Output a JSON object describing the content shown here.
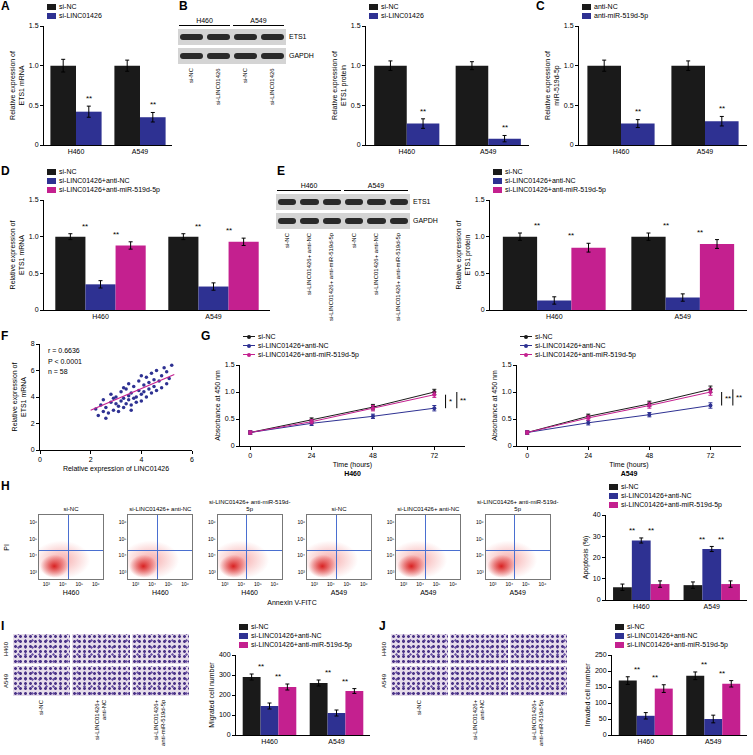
{
  "chart_data": [
    {
      "panel": "A",
      "type": "bar",
      "categories": [
        "H460",
        "A549"
      ],
      "y_label": "Relative expression of ETS1 mRNA",
      "ylim": [
        0,
        1.5
      ],
      "yticks": [
        0,
        0.5,
        {
          "value": 1,
          "label": "1.0"
        },
        1.5
      ],
      "legend": "top-left",
      "series": [
        {
          "name": "si-NC",
          "color": "#1a1a1a",
          "values": [
            1.0,
            1.0
          ],
          "errors": [
            0.08,
            0.07
          ]
        },
        {
          "name": "si-LINC01426",
          "color": "#2e3192",
          "values": [
            0.42,
            0.35
          ],
          "errors": [
            0.07,
            0.06
          ]
        }
      ],
      "significance": [
        {
          "category": "H460",
          "series": [
            1
          ],
          "label": "**"
        },
        {
          "category": "A549",
          "series": [
            1
          ],
          "label": "**"
        }
      ]
    },
    {
      "type": "bar",
      "categories": [
        "H460",
        "A549"
      ],
      "y_label": "Relative expression of ETS1 protein",
      "ylim": [
        0,
        1.5
      ],
      "yticks": [
        0,
        0.5,
        {
          "value": 1,
          "label": "1.0"
        },
        1.5
      ],
      "legend": "top-left",
      "series": [
        {
          "name": "si-NC",
          "color": "#1a1a1a",
          "values": [
            1.0,
            1.0
          ],
          "errors": [
            0.06,
            0.05
          ]
        },
        {
          "name": "si-LINC01426",
          "color": "#2e3192",
          "values": [
            0.27,
            0.08
          ],
          "errors": [
            0.06,
            0.04
          ]
        }
      ],
      "significance": [
        {
          "category": "H460",
          "series": [
            1
          ],
          "label": "**"
        },
        {
          "category": "A549",
          "series": [
            1
          ],
          "label": "**"
        }
      ]
    },
    {
      "panel": "C",
      "type": "bar",
      "categories": [
        "H460",
        "A549"
      ],
      "y_label": "Relative expression of miR-519d-5p",
      "ylim": [
        0,
        1.5
      ],
      "yticks": [
        0,
        0.5,
        {
          "value": 1,
          "label": "1.0"
        },
        1.5
      ],
      "legend": "top-left",
      "series": [
        {
          "name": "anti-NC",
          "color": "#1a1a1a",
          "values": [
            1.0,
            1.0
          ],
          "errors": [
            0.07,
            0.06
          ]
        },
        {
          "name": "anti-miR-519d-5p",
          "color": "#2e3192",
          "values": [
            0.27,
            0.3
          ],
          "errors": [
            0.05,
            0.06
          ]
        }
      ],
      "significance": [
        {
          "category": "H460",
          "series": [
            1
          ],
          "label": "**"
        },
        {
          "category": "A549",
          "series": [
            1
          ],
          "label": "**"
        }
      ]
    },
    {
      "panel": "D",
      "type": "bar",
      "categories": [
        "H460",
        "A549"
      ],
      "y_label": "Relative expression of ETS1 mRNA",
      "ylim": [
        0,
        1.5
      ],
      "yticks": [
        0,
        0.5,
        {
          "value": 1,
          "label": "1.0"
        },
        1.5
      ],
      "legend": "top-left",
      "series": [
        {
          "name": "si-NC",
          "color": "#1a1a1a",
          "values": [
            1.0,
            1.0
          ],
          "errors": [
            0.04,
            0.04
          ]
        },
        {
          "name": "si-LINC01426+anti-NC",
          "color": "#2e3192",
          "values": [
            0.35,
            0.32
          ],
          "errors": [
            0.05,
            0.05
          ]
        },
        {
          "name": "si-LINC01426+anti-miR-519d-5p",
          "color": "#c4208f",
          "values": [
            0.88,
            0.93
          ],
          "errors": [
            0.05,
            0.05
          ]
        }
      ],
      "significance": [
        {
          "category": "H460",
          "series": [
            0,
            1
          ],
          "label": "**"
        },
        {
          "category": "H460",
          "series": [
            1,
            2
          ],
          "label": "**"
        },
        {
          "category": "A549",
          "series": [
            0,
            1
          ],
          "label": "**"
        },
        {
          "category": "A549",
          "series": [
            1,
            2
          ],
          "label": "**"
        }
      ]
    },
    {
      "type": "bar",
      "categories": [
        "H460",
        "A549"
      ],
      "y_label": "Relative expression of ETS1 protein",
      "ylim": [
        0,
        1.5
      ],
      "yticks": [
        0,
        0.5,
        {
          "value": 1,
          "label": "1.0"
        },
        1.5
      ],
      "legend": "top-left",
      "series": [
        {
          "name": "si-NC",
          "color": "#1a1a1a",
          "values": [
            1.0,
            1.0
          ],
          "errors": [
            0.05,
            0.05
          ]
        },
        {
          "name": "si-LINC01426+anti-NC",
          "color": "#2e3192",
          "values": [
            0.13,
            0.17
          ],
          "errors": [
            0.05,
            0.05
          ]
        },
        {
          "name": "si-LINC01426+anti-miR-519d-5p",
          "color": "#c4208f",
          "values": [
            0.85,
            0.9
          ],
          "errors": [
            0.06,
            0.06
          ]
        }
      ],
      "significance": [
        {
          "category": "H460",
          "series": [
            0,
            1
          ],
          "label": "**"
        },
        {
          "category": "H460",
          "series": [
            1,
            2
          ],
          "label": "**"
        },
        {
          "category": "A549",
          "series": [
            0,
            1
          ],
          "label": "**"
        },
        {
          "category": "A549",
          "series": [
            1,
            2
          ],
          "label": "**"
        }
      ]
    },
    {
      "panel": "F",
      "type": "scatter",
      "x_label": "Relative expression of LINC01426",
      "y_label": "Relative expression of ETS1 mRNA",
      "xlim": [
        0,
        6
      ],
      "xticks": [
        0,
        2,
        4,
        6
      ],
      "ylim": [
        0,
        8
      ],
      "yticks": [
        0,
        2,
        4,
        6,
        8
      ],
      "annotations": [
        "r = 0.6636",
        "P < 0.0001",
        "n = 58"
      ],
      "color": "#2e3192",
      "x": [
        2.2,
        2.3,
        2.4,
        2.5,
        2.5,
        2.6,
        2.7,
        2.8,
        2.8,
        2.9,
        3.0,
        3.0,
        3.1,
        3.1,
        3.2,
        3.2,
        3.3,
        3.3,
        3.4,
        3.4,
        3.5,
        3.5,
        3.5,
        3.6,
        3.6,
        3.7,
        3.7,
        3.8,
        3.8,
        3.9,
        3.9,
        4.0,
        4.0,
        4.1,
        4.1,
        4.2,
        4.2,
        4.3,
        4.3,
        4.4,
        4.4,
        4.5,
        4.5,
        4.6,
        4.6,
        4.7,
        4.8,
        4.8,
        4.9,
        5.0,
        5.0,
        5.1,
        5.2,
        3.3,
        2.9,
        4.0,
        3.6,
        2.6
      ],
      "y": [
        3.1,
        2.6,
        3.4,
        2.9,
        3.8,
        3.2,
        2.8,
        3.6,
        4.2,
        3.0,
        3.5,
        4.0,
        3.3,
        2.9,
        4.4,
        3.7,
        3.9,
        3.2,
        4.6,
        3.5,
        4.1,
        3.8,
        5.0,
        3.4,
        4.3,
        3.9,
        4.8,
        4.0,
        3.6,
        4.5,
        5.2,
        4.2,
        3.7,
        4.9,
        4.4,
        5.5,
        4.0,
        4.6,
        5.1,
        4.3,
        5.8,
        4.8,
        5.3,
        4.5,
        6.0,
        5.2,
        4.7,
        5.6,
        6.2,
        5.0,
        5.9,
        5.4,
        6.4,
        4.7,
        3.9,
        5.6,
        3.0,
        2.4
      ],
      "fit": {
        "x": [
          2.0,
          5.3
        ],
        "y": [
          3.0,
          5.7
        ],
        "color": "#c4208f"
      }
    },
    {
      "panel": "G",
      "type": "line",
      "subtitle": "H460",
      "x_label": "Time (hours)",
      "y_label": "Absorbance at 450 nm",
      "x": [
        0,
        24,
        48,
        72
      ],
      "xlim": [
        -4,
        84
      ],
      "xticks": [
        0,
        24,
        48,
        72
      ],
      "ylim": [
        0,
        1.5
      ],
      "yticks": [
        0,
        0.5,
        {
          "value": 1,
          "label": "1.0"
        },
        1.5
      ],
      "legend": "top-left",
      "series": [
        {
          "name": "si-NC",
          "color": "#1a1a1a",
          "values": [
            0.25,
            0.48,
            0.72,
            1.0
          ],
          "errors": [
            0.03,
            0.04,
            0.05,
            0.05
          ]
        },
        {
          "name": "si-LINC01426+anti-NC",
          "color": "#2e3192",
          "values": [
            0.25,
            0.42,
            0.55,
            0.7
          ],
          "errors": [
            0.03,
            0.04,
            0.04,
            0.05
          ]
        },
        {
          "name": "si-LINC01426+anti-miR-519d-5p",
          "color": "#c4208f",
          "values": [
            0.25,
            0.45,
            0.7,
            0.95
          ],
          "errors": [
            0.03,
            0.04,
            0.05,
            0.05
          ]
        }
      ],
      "significance": [
        {
          "x": 72,
          "series": [
            1,
            2
          ],
          "label": "*"
        },
        {
          "x": 72,
          "series": [
            0,
            1
          ],
          "label": "**"
        }
      ]
    },
    {
      "type": "line",
      "subtitle": "A549",
      "x_label": "Time (hours)",
      "y_label": "Absorbance at 450 nm",
      "x": [
        0,
        24,
        48,
        72
      ],
      "xlim": [
        -4,
        84
      ],
      "xticks": [
        0,
        24,
        48,
        72
      ],
      "ylim": [
        0,
        1.5
      ],
      "yticks": [
        0,
        0.5,
        {
          "value": 1,
          "label": "1.0"
        },
        1.5
      ],
      "legend": "top-left",
      "series": [
        {
          "name": "si-NC",
          "color": "#1a1a1a",
          "values": [
            0.25,
            0.55,
            0.78,
            1.05
          ],
          "errors": [
            0.03,
            0.04,
            0.05,
            0.06
          ]
        },
        {
          "name": "si-LINC01426+anti-NC",
          "color": "#2e3192",
          "values": [
            0.25,
            0.43,
            0.58,
            0.75
          ],
          "errors": [
            0.03,
            0.04,
            0.04,
            0.05
          ]
        },
        {
          "name": "si-LINC01426+anti-miR-519d-5p",
          "color": "#c4208f",
          "values": [
            0.25,
            0.52,
            0.75,
            1.0
          ],
          "errors": [
            0.03,
            0.04,
            0.05,
            0.06
          ]
        }
      ],
      "significance": [
        {
          "x": 72,
          "series": [
            1,
            2
          ],
          "label": "**"
        },
        {
          "x": 72,
          "series": [
            0,
            1
          ],
          "label": "**"
        }
      ]
    },
    {
      "type": "bar",
      "categories": [
        "H460",
        "A549"
      ],
      "y_label": "Apoptosis (%)",
      "ylim": [
        0,
        40
      ],
      "yticks": [
        0,
        10,
        20,
        30,
        40
      ],
      "legend": "top-left",
      "series": [
        {
          "name": "si-NC",
          "color": "#1a1a1a",
          "values": [
            6,
            7
          ],
          "errors": [
            1.5,
            1.5
          ]
        },
        {
          "name": "si-LINC01426+anti-NC",
          "color": "#2e3192",
          "values": [
            28,
            24
          ],
          "errors": [
            1.2,
            1.2
          ]
        },
        {
          "name": "si-LINC01426+anti-miR-519d-5p",
          "color": "#c4208f",
          "values": [
            7.5,
            7.5
          ],
          "errors": [
            1.5,
            1.5
          ]
        }
      ],
      "significance": [
        {
          "category": "H460",
          "series": [
            0,
            1
          ],
          "label": "**"
        },
        {
          "category": "H460",
          "series": [
            1,
            2
          ],
          "label": "**"
        },
        {
          "category": "A549",
          "series": [
            0,
            1
          ],
          "label": "**"
        },
        {
          "category": "A549",
          "series": [
            1,
            2
          ],
          "label": "**"
        }
      ]
    },
    {
      "type": "bar",
      "categories": [
        "H460",
        "A549"
      ],
      "y_label": "Migrated cell number",
      "ylim": [
        0,
        400
      ],
      "yticks": [
        0,
        100,
        200,
        300,
        400
      ],
      "legend": "top-left",
      "series": [
        {
          "name": "si-NC",
          "color": "#1a1a1a",
          "values": [
            290,
            260
          ],
          "errors": [
            15,
            15
          ]
        },
        {
          "name": "si-LINC01426+anti-NC",
          "color": "#2e3192",
          "values": [
            145,
            110
          ],
          "errors": [
            15,
            15
          ]
        },
        {
          "name": "si-LINC01426+anti-miR-519d-5p",
          "color": "#c4208f",
          "values": [
            240,
            220
          ],
          "errors": [
            15,
            12
          ]
        }
      ],
      "significance": [
        {
          "category": "H460",
          "series": [
            0,
            1
          ],
          "label": "**"
        },
        {
          "category": "H460",
          "series": [
            1,
            2
          ],
          "label": "**"
        },
        {
          "category": "A549",
          "series": [
            0,
            1
          ],
          "label": "**"
        },
        {
          "category": "A549",
          "series": [
            1,
            2
          ],
          "label": "**"
        }
      ]
    },
    {
      "type": "bar",
      "categories": [
        "H460",
        "A549"
      ],
      "y_label": "Invaded cell number",
      "ylim": [
        0,
        250
      ],
      "yticks": [
        0,
        50,
        100,
        150,
        200,
        250
      ],
      "legend": "top-left",
      "series": [
        {
          "name": "si-NC",
          "color": "#1a1a1a",
          "values": [
            170,
            185
          ],
          "errors": [
            12,
            12
          ]
        },
        {
          "name": "si-LINC01426+anti-NC",
          "color": "#2e3192",
          "values": [
            60,
            50
          ],
          "errors": [
            10,
            12
          ]
        },
        {
          "name": "si-LINC01426+anti-miR-519d-5p",
          "color": "#c4208f",
          "values": [
            145,
            160
          ],
          "errors": [
            12,
            10
          ]
        }
      ],
      "significance": [
        {
          "category": "H460",
          "series": [
            0,
            1
          ],
          "label": "**"
        },
        {
          "category": "H460",
          "series": [
            1,
            2
          ],
          "label": "**"
        },
        {
          "category": "A549",
          "series": [
            0,
            1
          ],
          "label": "**"
        },
        {
          "category": "A549",
          "series": [
            1,
            2
          ],
          "label": "**"
        }
      ]
    }
  ],
  "figures": [
    {
      "panel": "B",
      "type": "western_blot",
      "groups": [
        "H460",
        "A549"
      ],
      "rows": [
        "ETS1",
        "GAPDH"
      ],
      "lanes": [
        "si-NC",
        "si-LINC01426",
        "si-NC",
        "si-LINC01426"
      ]
    },
    {
      "panel": "E",
      "type": "western_blot",
      "groups": [
        "H460",
        "A549"
      ],
      "rows": [
        "ETS1",
        "GAPDH"
      ],
      "lanes": [
        "si-NC",
        "si-LINC01426+ anti-NC",
        "si-LINC01426+ anti-miR-519d-5p",
        "si-NC",
        "si-LINC01426+ anti-NC",
        "si-LINC01426+ anti-miR-519d-5p"
      ]
    },
    {
      "panel": "H",
      "type": "flow_cytometry",
      "x_label": "Annexin V-FITC",
      "y_label": "PI",
      "ticks": [
        "10³",
        "10⁴",
        "10⁵",
        "10⁶"
      ],
      "plots": [
        {
          "label": "si-NC",
          "group": "H460"
        },
        {
          "label": "si-LINC01426+ anti-NC",
          "group": "H460"
        },
        {
          "label": "si-LINC01426+ anti-miR-519d-5p",
          "group": "H460"
        },
        {
          "label": "si-NC",
          "group": "A549"
        },
        {
          "label": "si-LINC01426+ anti-NC",
          "group": "A549"
        },
        {
          "label": "si-LINC01426+ anti-miR-519d-5p",
          "group": "A549"
        }
      ]
    },
    {
      "panel": "I",
      "type": "transwell",
      "rows": [
        "H460",
        "A549"
      ],
      "columns": [
        "si-NC",
        "si-LINC01426+ anti-NC",
        "si-LINC01426+ anti-miR-519d-5p"
      ]
    },
    {
      "panel": "J",
      "type": "transwell",
      "rows": [
        "H460",
        "A549"
      ],
      "columns": [
        "si-NC",
        "si-LINC01426+ anti-NC",
        "si-LINC01426+ anti-miR-519d-5p"
      ]
    }
  ]
}
